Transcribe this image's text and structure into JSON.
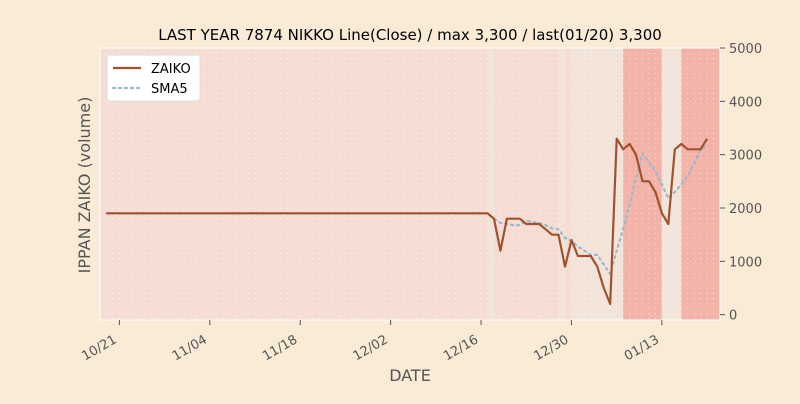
{
  "chart_data": {
    "type": "line",
    "title": "LAST YEAR 7874 NIKKO Line(Close) / max 3,300 / last(01/20) 3,300",
    "xlabel": "DATE",
    "ylabel": "IPPAN ZAIKO (volume)",
    "x_range": [
      "2024-10-18",
      "2025-01-22"
    ],
    "ylim": [
      -100,
      5000
    ],
    "y_axis_side": "right",
    "y_ticks": [
      0,
      1000,
      2000,
      3000,
      4000,
      5000
    ],
    "x_ticks": [
      {
        "date": "2024-10-21",
        "label": "10/21"
      },
      {
        "date": "2024-11-04",
        "label": "11/04"
      },
      {
        "date": "2024-11-18",
        "label": "11/18"
      },
      {
        "date": "2024-12-02",
        "label": "12/02"
      },
      {
        "date": "2024-12-16",
        "label": "12/16"
      },
      {
        "date": "2024-12-30",
        "label": "12/30"
      },
      {
        "date": "2025-01-13",
        "label": "01/13"
      }
    ],
    "grid": true,
    "legend_placement": "upper-left",
    "colors": {
      "background": "#faebd7",
      "plot_background": "#f5ddd4",
      "zaiko": "#a0522d",
      "sma5": "#9ab8d0",
      "band_dark": "#f3b3a8",
      "band_light": "#f3e4da"
    },
    "bands": [
      {
        "start": "2024-10-18",
        "end": "2024-12-17",
        "level": "mid"
      },
      {
        "start": "2024-12-17",
        "end": "2024-12-18",
        "level": "light"
      },
      {
        "start": "2024-12-18",
        "end": "2024-12-28",
        "level": "mid"
      },
      {
        "start": "2024-12-28",
        "end": "2024-12-29",
        "level": "light"
      },
      {
        "start": "2024-12-29",
        "end": "2024-12-30",
        "level": "mid"
      },
      {
        "start": "2024-12-30",
        "end": "2025-01-07",
        "level": "light"
      },
      {
        "start": "2025-01-07",
        "end": "2025-01-13",
        "level": "dark"
      },
      {
        "start": "2025-01-13",
        "end": "2025-01-16",
        "level": "light"
      },
      {
        "start": "2025-01-16",
        "end": "2025-01-22",
        "level": "dark"
      }
    ],
    "series": [
      {
        "name": "ZAIKO",
        "style": "solid",
        "points": [
          [
            "2024-10-19",
            1900
          ],
          [
            "2024-12-17",
            1900
          ],
          [
            "2024-12-18",
            1800
          ],
          [
            "2024-12-19",
            1200
          ],
          [
            "2024-12-20",
            1800
          ],
          [
            "2024-12-21",
            1800
          ],
          [
            "2024-12-22",
            1800
          ],
          [
            "2024-12-23",
            1700
          ],
          [
            "2024-12-24",
            1700
          ],
          [
            "2024-12-25",
            1700
          ],
          [
            "2024-12-26",
            1600
          ],
          [
            "2024-12-27",
            1500
          ],
          [
            "2024-12-28",
            1500
          ],
          [
            "2024-12-29",
            900
          ],
          [
            "2024-12-30",
            1400
          ],
          [
            "2024-12-31",
            1100
          ],
          [
            "2025-01-01",
            1100
          ],
          [
            "2025-01-02",
            1100
          ],
          [
            "2025-01-03",
            900
          ],
          [
            "2025-01-04",
            500
          ],
          [
            "2025-01-05",
            200
          ],
          [
            "2025-01-06",
            3300
          ],
          [
            "2025-01-07",
            3100
          ],
          [
            "2025-01-08",
            3200
          ],
          [
            "2025-01-09",
            3000
          ],
          [
            "2025-01-10",
            2500
          ],
          [
            "2025-01-11",
            2500
          ],
          [
            "2025-01-12",
            2300
          ],
          [
            "2025-01-13",
            1900
          ],
          [
            "2025-01-14",
            1700
          ],
          [
            "2025-01-15",
            3100
          ],
          [
            "2025-01-16",
            3200
          ],
          [
            "2025-01-17",
            3100
          ],
          [
            "2025-01-18",
            3100
          ],
          [
            "2025-01-19",
            3100
          ],
          [
            "2025-01-20",
            3300
          ]
        ]
      },
      {
        "name": "SMA5",
        "style": "dotted",
        "points": [
          [
            "2024-10-19",
            1900
          ],
          [
            "2024-12-17",
            1900
          ],
          [
            "2024-12-18",
            1800
          ],
          [
            "2024-12-19",
            1720
          ],
          [
            "2024-12-20",
            1700
          ],
          [
            "2024-12-21",
            1680
          ],
          [
            "2024-12-22",
            1680
          ],
          [
            "2024-12-23",
            1760
          ],
          [
            "2024-12-24",
            1740
          ],
          [
            "2024-12-25",
            1720
          ],
          [
            "2024-12-26",
            1680
          ],
          [
            "2024-12-27",
            1620
          ],
          [
            "2024-12-28",
            1600
          ],
          [
            "2024-12-29",
            1440
          ],
          [
            "2024-12-30",
            1380
          ],
          [
            "2024-12-31",
            1280
          ],
          [
            "2025-01-01",
            1200
          ],
          [
            "2025-01-02",
            1120
          ],
          [
            "2025-01-03",
            1120
          ],
          [
            "2025-01-04",
            940
          ],
          [
            "2025-01-05",
            760
          ],
          [
            "2025-01-06",
            1200
          ],
          [
            "2025-01-07",
            1600
          ],
          [
            "2025-01-08",
            2060
          ],
          [
            "2025-01-09",
            2560
          ],
          [
            "2025-01-10",
            3020
          ],
          [
            "2025-01-11",
            2860
          ],
          [
            "2025-01-12",
            2700
          ],
          [
            "2025-01-13",
            2440
          ],
          [
            "2025-01-14",
            2180
          ],
          [
            "2025-01-15",
            2300
          ],
          [
            "2025-01-16",
            2440
          ],
          [
            "2025-01-17",
            2600
          ],
          [
            "2025-01-18",
            2840
          ],
          [
            "2025-01-19",
            3100
          ],
          [
            "2025-01-20",
            3160
          ]
        ]
      }
    ]
  }
}
